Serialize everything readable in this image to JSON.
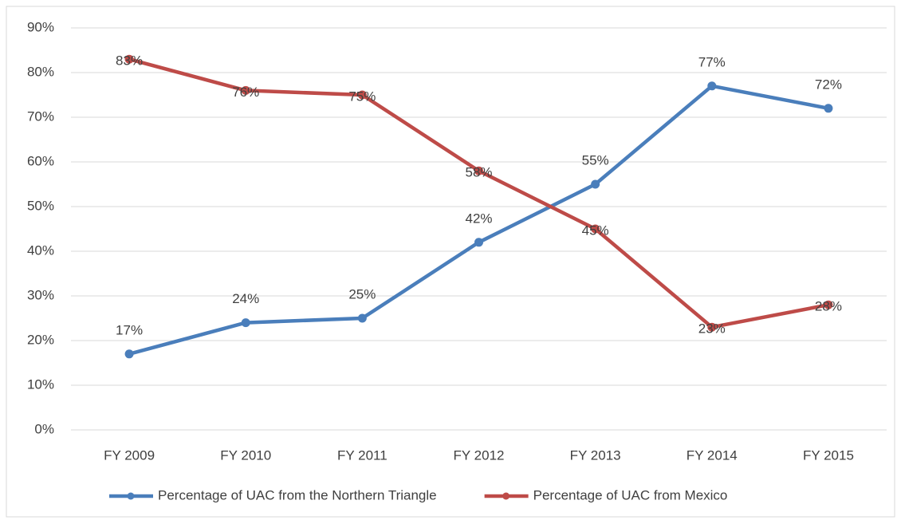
{
  "chart_data": {
    "type": "line",
    "categories": [
      "FY 2009",
      "FY 2010",
      "FY 2011",
      "FY 2012",
      "FY 2013",
      "FY 2014",
      "FY 2015"
    ],
    "series": [
      {
        "name": "Percentage of UAC from the Northern Triangle",
        "color": "#4a7ebb",
        "values": [
          17,
          24,
          25,
          42,
          55,
          77,
          72
        ],
        "value_labels": [
          "17%",
          "24%",
          "25%",
          "42%",
          "55%",
          "77%",
          "72%"
        ]
      },
      {
        "name": "Percentage of UAC from Mexico",
        "color": "#be4b48",
        "values": [
          83,
          76,
          75,
          58,
          45,
          23,
          28
        ],
        "value_labels": [
          "83%",
          "76%",
          "75%",
          "58%",
          "45%",
          "23%",
          "28%"
        ]
      }
    ],
    "ylim": [
      0,
      90
    ],
    "yticks": [
      {
        "value": 0,
        "label": "0%"
      },
      {
        "value": 10,
        "label": "10%"
      },
      {
        "value": 20,
        "label": "20%"
      },
      {
        "value": 30,
        "label": "30%"
      },
      {
        "value": 40,
        "label": "40%"
      },
      {
        "value": 50,
        "label": "50%"
      },
      {
        "value": 60,
        "label": "60%"
      },
      {
        "value": 70,
        "label": "70%"
      },
      {
        "value": 80,
        "label": "80%"
      },
      {
        "value": 90,
        "label": "90%"
      }
    ],
    "grid": true,
    "legend": "bottom"
  }
}
